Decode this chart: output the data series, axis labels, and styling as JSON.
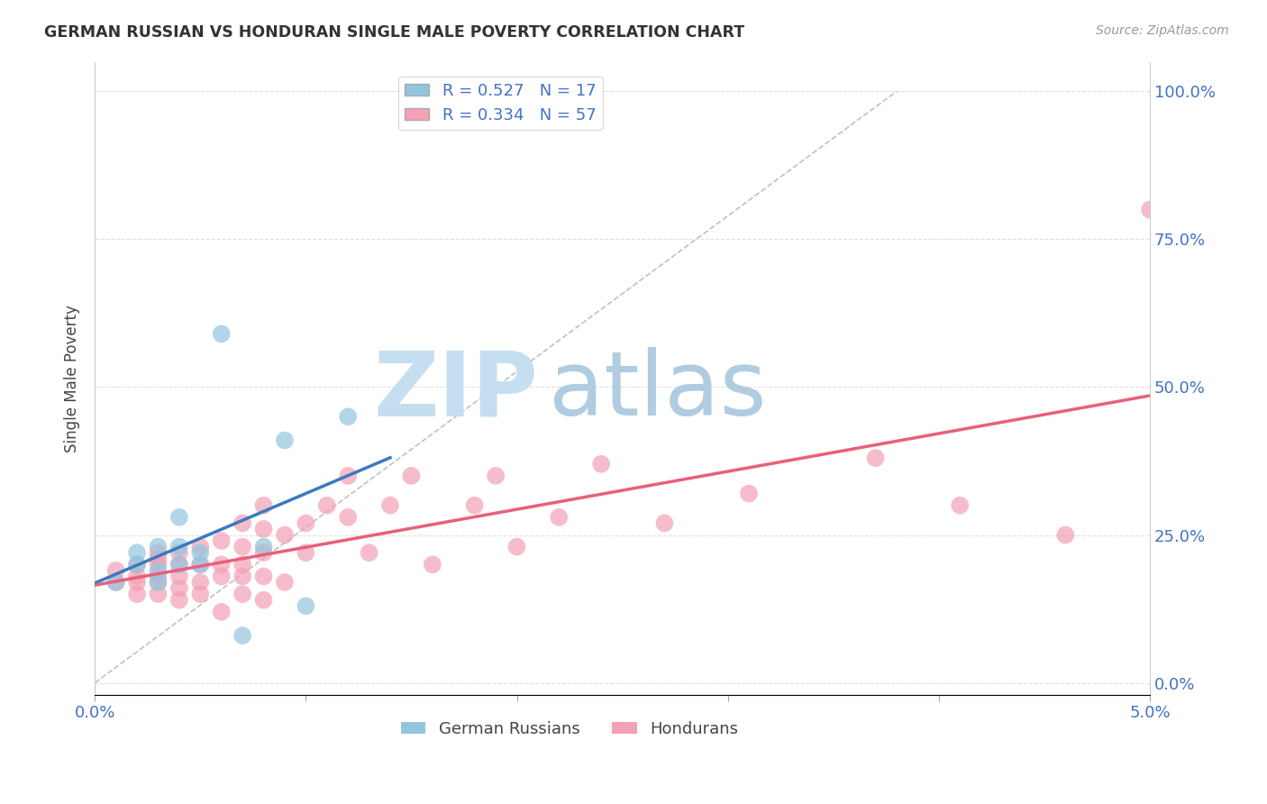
{
  "title": "GERMAN RUSSIAN VS HONDURAN SINGLE MALE POVERTY CORRELATION CHART",
  "source": "Source: ZipAtlas.com",
  "ylabel": "Single Male Poverty",
  "xlabel": "",
  "xlim": [
    0.0,
    0.05
  ],
  "ylim": [
    -0.02,
    1.05
  ],
  "x_ticks": [
    0.0,
    0.01,
    0.02,
    0.03,
    0.04,
    0.05
  ],
  "x_tick_labels": [
    "0.0%",
    "",
    "",
    "",
    "",
    "5.0%"
  ],
  "y_ticks_right": [
    0.0,
    0.25,
    0.5,
    0.75,
    1.0
  ],
  "y_tick_labels_right": [
    "0.0%",
    "25.0%",
    "50.0%",
    "75.0%",
    "100.0%"
  ],
  "german_russian_R": 0.527,
  "german_russian_N": 17,
  "honduran_R": 0.334,
  "honduran_N": 57,
  "color_blue": "#92c5de",
  "color_pink": "#f4a0b5",
  "color_blue_line": "#3a7abf",
  "color_pink_line": "#e8607a",
  "color_dashed": "#c0c0c0",
  "german_russian_x": [
    0.001,
    0.002,
    0.002,
    0.003,
    0.003,
    0.003,
    0.004,
    0.004,
    0.004,
    0.005,
    0.005,
    0.006,
    0.007,
    0.008,
    0.009,
    0.01,
    0.012
  ],
  "german_russian_y": [
    0.17,
    0.2,
    0.22,
    0.17,
    0.19,
    0.23,
    0.2,
    0.23,
    0.28,
    0.2,
    0.22,
    0.59,
    0.08,
    0.23,
    0.41,
    0.13,
    0.45
  ],
  "honduran_x": [
    0.001,
    0.001,
    0.002,
    0.002,
    0.002,
    0.002,
    0.003,
    0.003,
    0.003,
    0.003,
    0.003,
    0.003,
    0.004,
    0.004,
    0.004,
    0.004,
    0.004,
    0.005,
    0.005,
    0.005,
    0.005,
    0.006,
    0.006,
    0.006,
    0.006,
    0.007,
    0.007,
    0.007,
    0.007,
    0.007,
    0.008,
    0.008,
    0.008,
    0.008,
    0.008,
    0.009,
    0.009,
    0.01,
    0.01,
    0.011,
    0.012,
    0.012,
    0.013,
    0.014,
    0.015,
    0.016,
    0.018,
    0.019,
    0.02,
    0.022,
    0.024,
    0.027,
    0.031,
    0.037,
    0.041,
    0.046,
    0.05
  ],
  "honduran_y": [
    0.17,
    0.19,
    0.15,
    0.17,
    0.18,
    0.2,
    0.15,
    0.17,
    0.18,
    0.2,
    0.21,
    0.22,
    0.14,
    0.16,
    0.18,
    0.2,
    0.22,
    0.15,
    0.17,
    0.2,
    0.23,
    0.12,
    0.18,
    0.2,
    0.24,
    0.15,
    0.18,
    0.2,
    0.23,
    0.27,
    0.14,
    0.18,
    0.22,
    0.26,
    0.3,
    0.17,
    0.25,
    0.22,
    0.27,
    0.3,
    0.28,
    0.35,
    0.22,
    0.3,
    0.35,
    0.2,
    0.3,
    0.35,
    0.23,
    0.28,
    0.37,
    0.27,
    0.32,
    0.38,
    0.3,
    0.25,
    0.8
  ],
  "watermark_zip": "ZIP",
  "watermark_atlas": "atlas",
  "watermark_color_zip": "#c8dff0",
  "watermark_color_atlas": "#a8c8e0",
  "background_color": "#ffffff",
  "grid_color": "#e0e0e0",
  "tick_color": "#4472C4",
  "label_color": "#444444"
}
